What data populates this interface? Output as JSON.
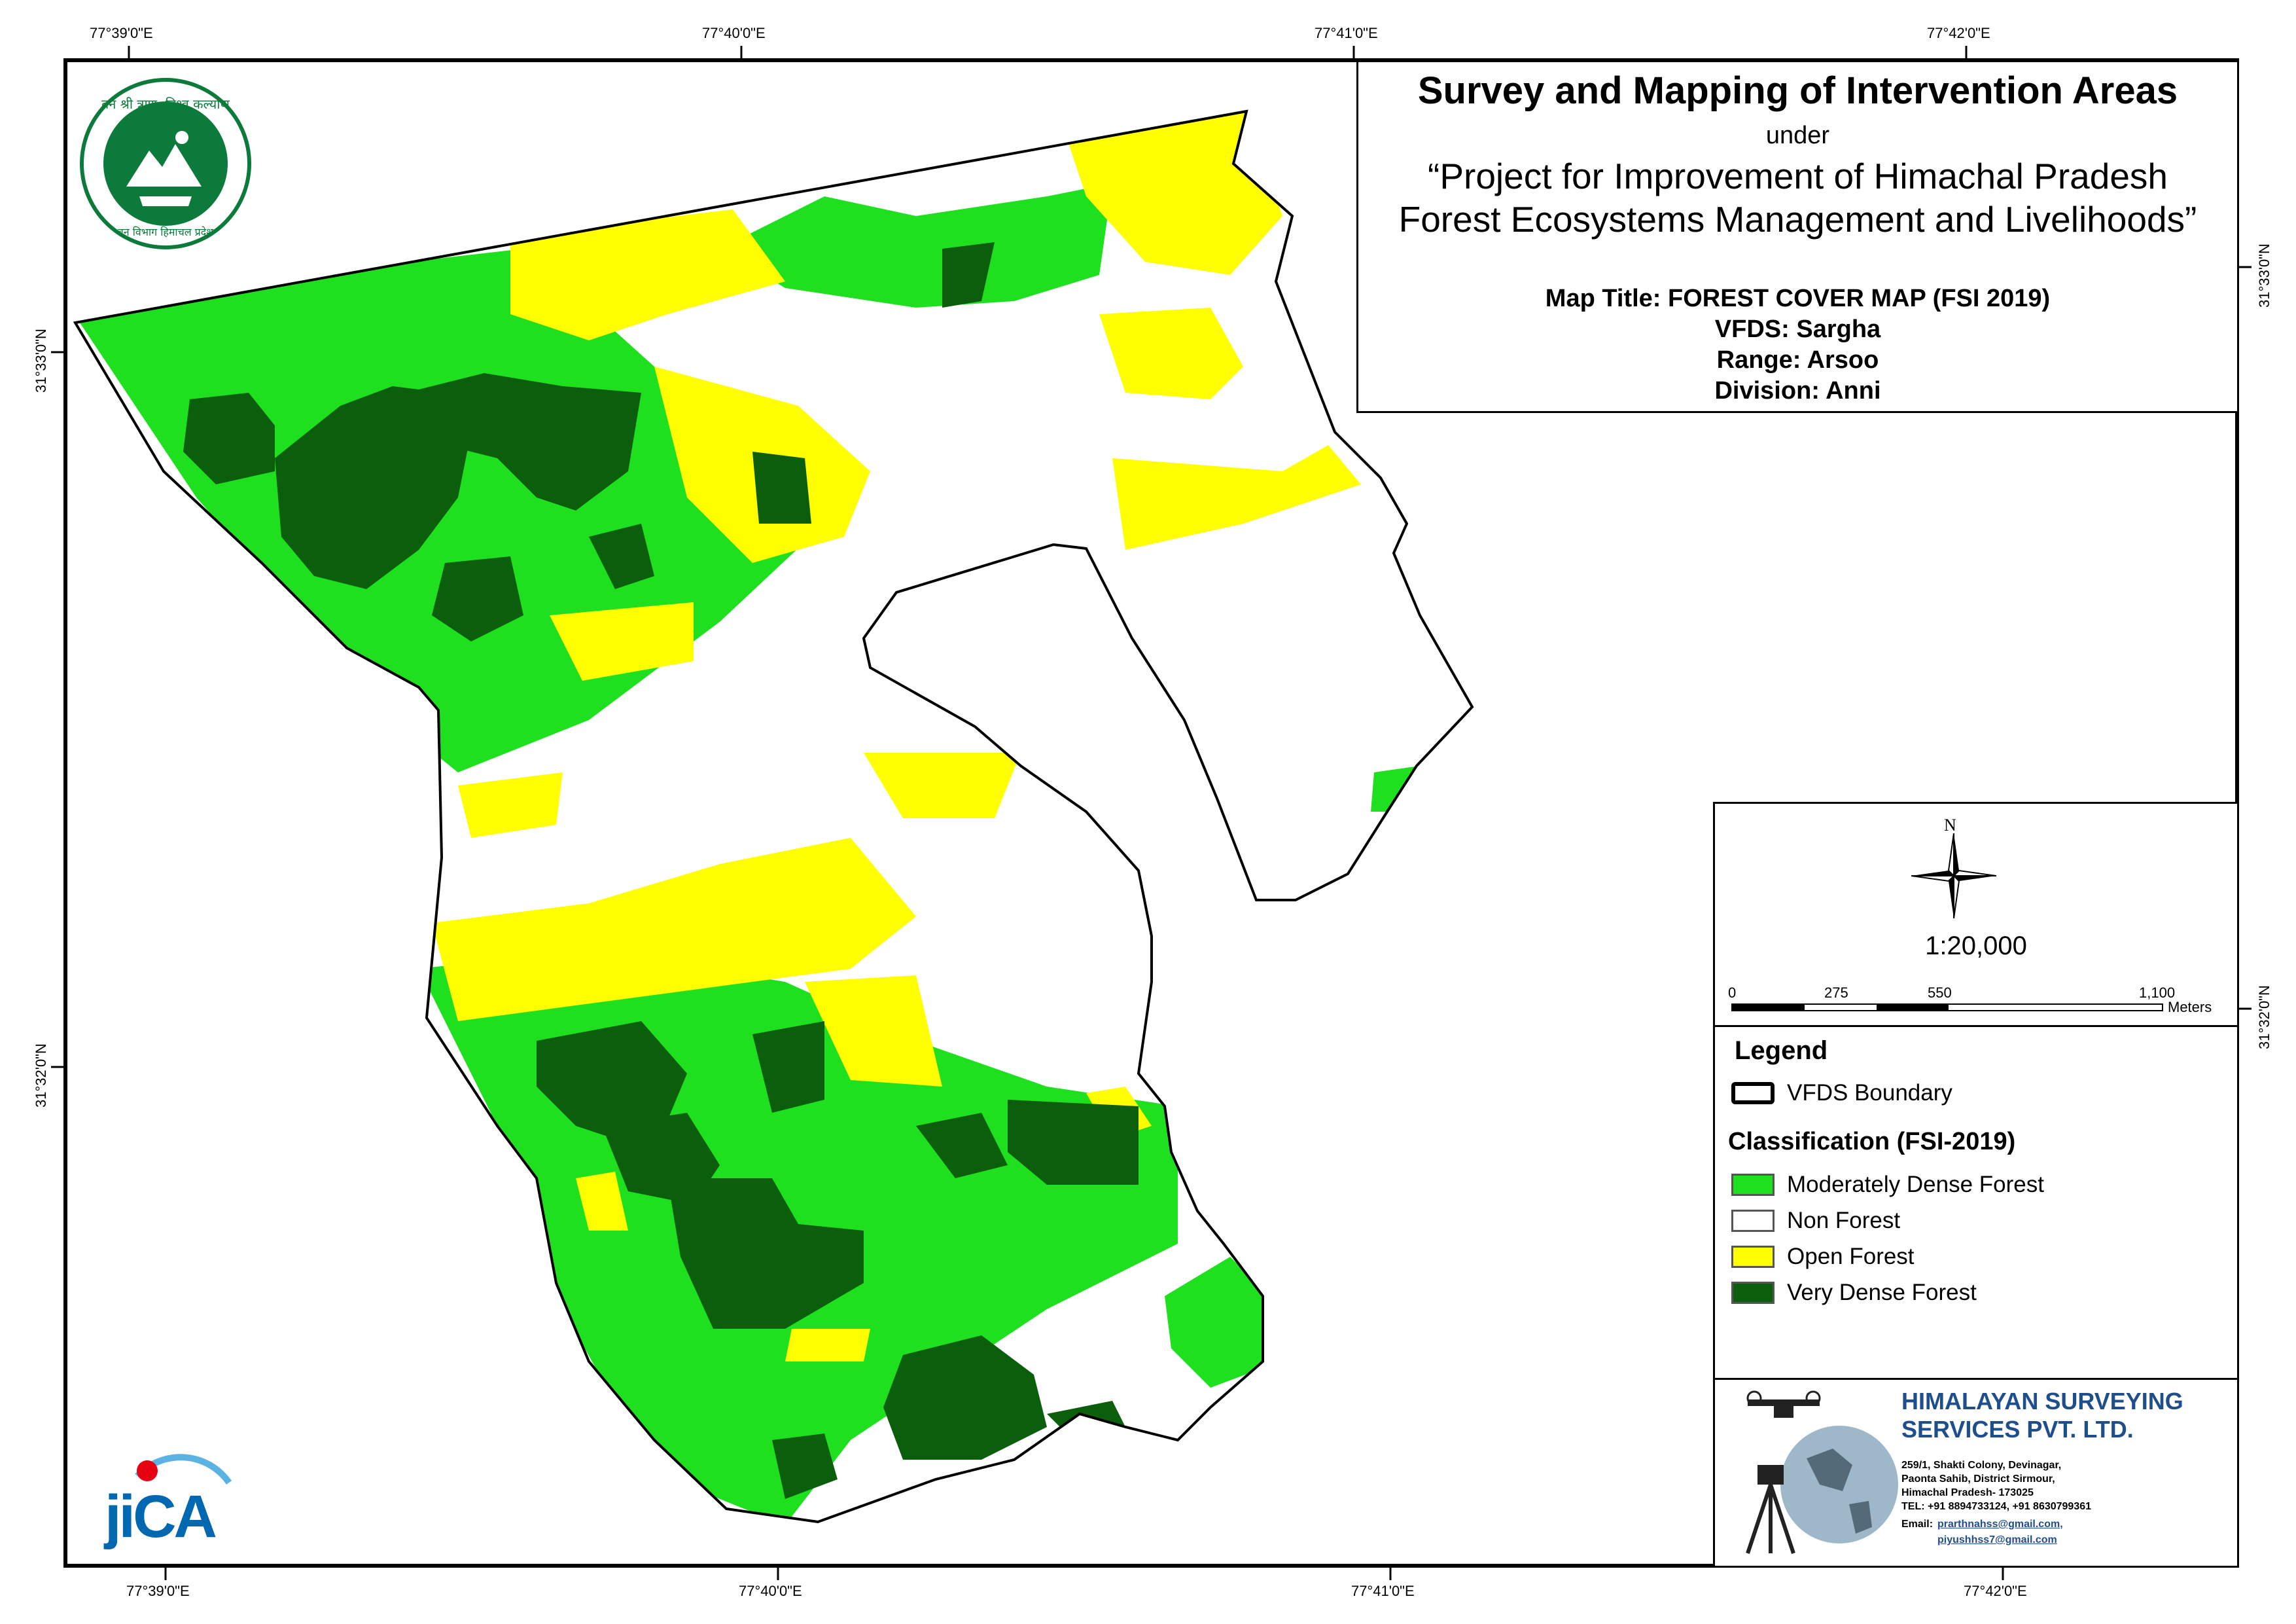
{
  "header": {
    "title": "Survey and Mapping of Intervention Areas",
    "under": "under",
    "project_line1": "“Project for Improvement of Himachal Pradesh",
    "project_line2": "Forest Ecosystems Management and Livelihoods”"
  },
  "map_info": {
    "map_title": "Map Title: FOREST COVER MAP (FSI 2019)",
    "vfds": "VFDS: Sargha",
    "range": "Range: Arsoo",
    "division": "Division: Anni"
  },
  "graticule": {
    "top": [
      "77°39'0\"E",
      "77°40'0\"E",
      "77°41'0\"E",
      "77°42'0\"E"
    ],
    "bottom": [
      "77°39'0\"E",
      "77°40'0\"E",
      "77°41'0\"E",
      "77°42'0\"E"
    ],
    "left": [
      "31°33'0\"N",
      "31°32'0\"N"
    ],
    "right": [
      "31°33'0\"N",
      "31°32'0\"N"
    ]
  },
  "north_arrow": {
    "label": "N"
  },
  "scale": {
    "ratio": "1:20,000",
    "ticks": [
      "0",
      "275",
      "550",
      "1,100"
    ],
    "unit": "Meters"
  },
  "legend": {
    "title": "Legend",
    "boundary_label": "VFDS Boundary",
    "classification_title": "Classification (FSI-2019)",
    "classes": [
      {
        "label": "Moderately Dense Forest",
        "color": "#1fe01f"
      },
      {
        "label": "Non Forest",
        "color": "#ffffff"
      },
      {
        "label": "Open Forest",
        "color": "#ffff00"
      },
      {
        "label": "Very Dense Forest",
        "color": "#0b5e0b"
      }
    ]
  },
  "company": {
    "name_line1": "HIMALAYAN SURVEYING",
    "name_line2": "SERVICES PVT. LTD.",
    "address": [
      "259/1, Shakti Colony, Devinagar,",
      "Paonta Sahib, District Sirmour,",
      "Himachal Pradesh- 173025",
      "TEL: +91 8894733124, +91 8630799361"
    ],
    "email_label": "Email:",
    "email1": "prarthnahss@gmail.com,",
    "email2": "piyushhss7@gmail.com"
  },
  "logos": {
    "forest_dept_text_top": "वन श्री त्राण, विश्व कल्याण",
    "forest_dept_text_bottom": "वन विभाग हिमाचल प्रदेश",
    "jica": "JICA"
  },
  "colors": {
    "moderately_dense": "#1fe01f",
    "open_forest": "#ffff00",
    "very_dense": "#0b5e0b",
    "non_forest": "#ffffff",
    "company_blue": "#1f4e8c"
  }
}
